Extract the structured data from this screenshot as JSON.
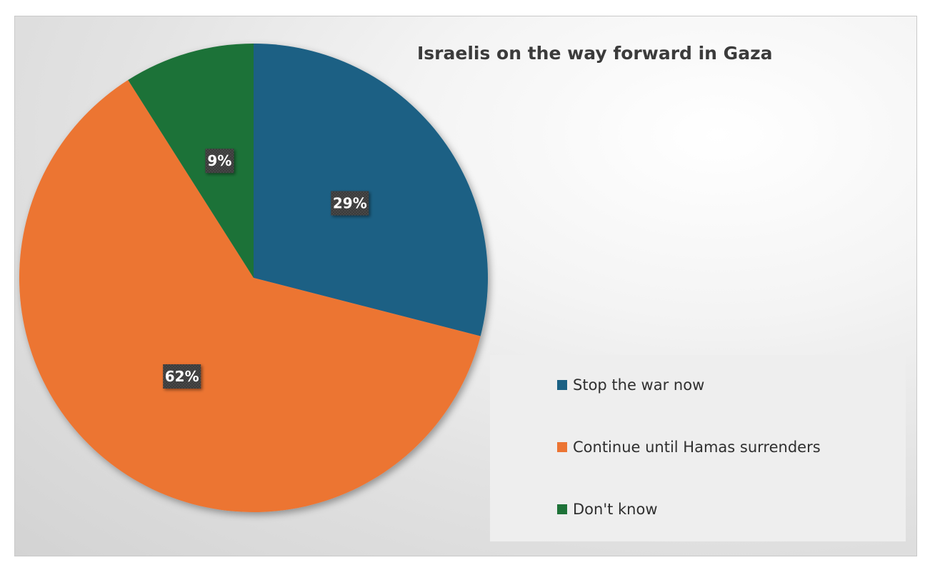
{
  "chart_data": {
    "type": "pie",
    "title": "Israelis on the way forward in Gaza",
    "categories": [
      "Stop the war now",
      "Continue until Hamas surrenders",
      "Don't know"
    ],
    "values": [
      29,
      62,
      9
    ],
    "data_labels": [
      "29%",
      "62%",
      "9%"
    ],
    "colors": [
      "#1b6184",
      "#ec7433",
      "#1e7238"
    ],
    "start": "12 o'clock",
    "direction": "clockwise",
    "legend_position": "bottom-right"
  }
}
